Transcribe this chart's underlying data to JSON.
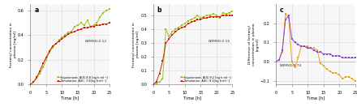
{
  "panel_a": {
    "label": "a",
    "nrmsd": "NRMSD:0.12",
    "exp_label": "Experiment, AUC:8.8 [ng h ml⁻¹]",
    "sim_label": "Simulation, AUC: 7.6[ng h ml⁻¹]",
    "exp_color": "#a0c020",
    "sim_color": "#cc2200",
    "exp_x": [
      0,
      1,
      2,
      3,
      4,
      5,
      6,
      7,
      8,
      9,
      10,
      11,
      12,
      13,
      14,
      15,
      16,
      17,
      18,
      19,
      20,
      21,
      22,
      23,
      24,
      25
    ],
    "exp_y": [
      0.0,
      0.02,
      0.05,
      0.09,
      0.14,
      0.2,
      0.26,
      0.3,
      0.33,
      0.36,
      0.38,
      0.4,
      0.42,
      0.43,
      0.47,
      0.48,
      0.5,
      0.48,
      0.52,
      0.47,
      0.48,
      0.5,
      0.55,
      0.58,
      0.6,
      0.61
    ],
    "sim_x": [
      0,
      1,
      2,
      3,
      4,
      5,
      6,
      7,
      8,
      9,
      10,
      11,
      12,
      13,
      14,
      15,
      16,
      17,
      18,
      19,
      20,
      21,
      22,
      23,
      24,
      25
    ],
    "sim_y": [
      0.0,
      0.02,
      0.06,
      0.11,
      0.17,
      0.22,
      0.27,
      0.31,
      0.33,
      0.35,
      0.37,
      0.39,
      0.41,
      0.42,
      0.43,
      0.44,
      0.45,
      0.46,
      0.46,
      0.47,
      0.47,
      0.48,
      0.48,
      0.49,
      0.49,
      0.5
    ],
    "ylabel": "Fentanyl concentration in\nplasma [ng/ml]",
    "xlabel": "Time [h]",
    "ylim": [
      0,
      0.65
    ],
    "xlim": [
      0,
      25
    ],
    "yticks": [
      0.0,
      0.2,
      0.4,
      0.6
    ],
    "xticks": [
      0,
      5,
      10,
      15,
      20,
      25
    ]
  },
  "panel_b": {
    "label": "b",
    "nrmsd": "NRMSD:0.15",
    "exp_label": "Experiment, AUC:9.2 [ng h ml⁻¹]",
    "sim_label": "Simulation, AUC: 9.1[ng h ml⁻¹]",
    "exp_color": "#a0c020",
    "sim_color": "#cc2200",
    "exp_x": [
      0,
      1,
      2,
      3,
      4,
      5,
      6,
      7,
      8,
      9,
      10,
      11,
      12,
      13,
      14,
      15,
      16,
      17,
      18,
      19,
      20,
      21,
      22,
      23,
      24,
      25
    ],
    "exp_y": [
      0.0,
      0.01,
      0.02,
      0.04,
      0.4,
      0.35,
      0.38,
      0.4,
      0.41,
      0.43,
      0.44,
      0.46,
      0.47,
      0.48,
      0.5,
      0.48,
      0.49,
      0.5,
      0.5,
      0.51,
      0.5,
      0.48,
      0.52,
      0.51,
      0.52,
      0.53
    ],
    "sim_x": [
      0,
      1,
      2,
      3,
      4,
      5,
      6,
      7,
      8,
      9,
      10,
      11,
      12,
      13,
      14,
      15,
      16,
      17,
      18,
      19,
      20,
      21,
      22,
      23,
      24,
      25
    ],
    "sim_y": [
      0.0,
      0.02,
      0.08,
      0.17,
      0.3,
      0.33,
      0.36,
      0.38,
      0.4,
      0.41,
      0.42,
      0.44,
      0.45,
      0.46,
      0.47,
      0.47,
      0.48,
      0.48,
      0.49,
      0.49,
      0.49,
      0.49,
      0.5,
      0.5,
      0.5,
      0.5
    ],
    "ylabel": "Fentanyl concentration in\nplasma [ng/ml]",
    "xlabel": "Time [h]",
    "ylim": [
      0,
      0.58
    ],
    "xlim": [
      0,
      25
    ],
    "yticks": [
      0.0,
      0.1,
      0.2,
      0.3,
      0.4,
      0.5
    ],
    "xticks": [
      0,
      5,
      10,
      15,
      20,
      25
    ]
  },
  "panel_c": {
    "label": "c",
    "nrmsd": "NRMSD:0.74",
    "line_orange_color": "#e8a020",
    "line_purple_color": "#8844cc",
    "line_orange_x": [
      0,
      1,
      2,
      3,
      4,
      5,
      6,
      7,
      8,
      9,
      10,
      11,
      12,
      13,
      14,
      15,
      16,
      17,
      18,
      19,
      20,
      21,
      22,
      23,
      24,
      25
    ],
    "line_orange_y": [
      0.0,
      0.01,
      0.05,
      0.25,
      0.23,
      0.0,
      -0.03,
      0.02,
      0.08,
      0.08,
      0.08,
      0.07,
      0.07,
      0.06,
      -0.01,
      -0.02,
      -0.04,
      -0.05,
      -0.06,
      -0.06,
      -0.07,
      -0.09,
      -0.08,
      -0.08,
      -0.09,
      -0.1
    ],
    "line_purple_x": [
      0,
      1,
      2,
      3,
      4,
      5,
      6,
      7,
      8,
      9,
      10,
      11,
      12,
      13,
      14,
      15,
      16,
      17,
      18,
      19,
      20,
      21,
      22,
      23,
      24,
      25
    ],
    "line_purple_y": [
      0.0,
      0.01,
      0.06,
      0.22,
      0.24,
      0.12,
      0.1,
      0.09,
      0.08,
      0.08,
      0.07,
      0.07,
      0.06,
      0.05,
      0.05,
      0.04,
      0.04,
      0.04,
      0.03,
      0.03,
      0.03,
      0.02,
      0.02,
      0.02,
      0.02,
      0.02
    ],
    "ylabel": "Difference of fentanyl\nconcentration in plasma\n[ng/ml]",
    "xlabel": "Time [h]",
    "ylim": [
      -0.12,
      0.3
    ],
    "xlim": [
      0,
      25
    ],
    "yticks": [
      -0.1,
      0.0,
      0.1,
      0.2
    ],
    "xticks": [
      0,
      5,
      10,
      15,
      20,
      25
    ]
  },
  "bg_color": "#ffffff",
  "grid_color": "#e0e0e0",
  "face_color": "#f7f7f7"
}
